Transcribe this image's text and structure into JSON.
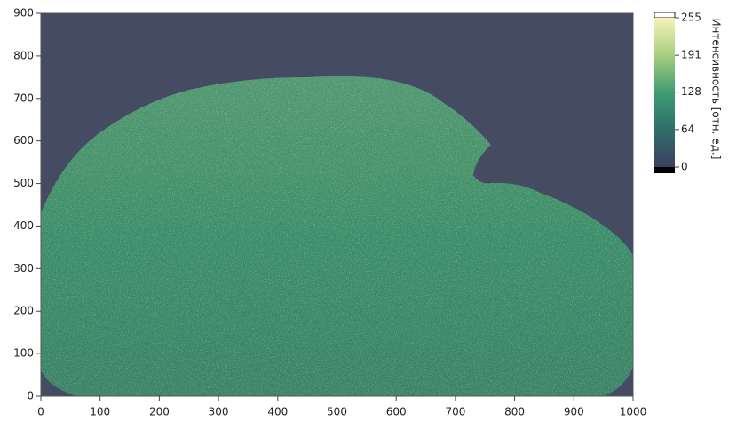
{
  "chart_data": {
    "type": "heatmap",
    "xlim": [
      0,
      1000
    ],
    "xticks": [
      0,
      100,
      200,
      300,
      400,
      500,
      600,
      700,
      800,
      900,
      1000
    ],
    "ylim": [
      0,
      900
    ],
    "yticks": [
      0,
      100,
      200,
      300,
      400,
      500,
      600,
      700,
      800,
      900
    ],
    "colorbar": {
      "label": "Интенсивность [отн. ед.]",
      "lim": [
        0,
        255
      ],
      "ticks": [
        0,
        64,
        128,
        191,
        255
      ]
    }
  }
}
